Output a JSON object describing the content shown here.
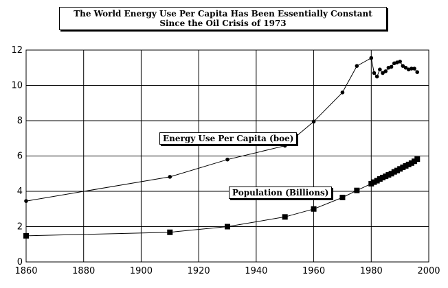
{
  "chart_data": {
    "type": "line",
    "title": "The World Energy Use Per Capita Has Been Essentially Constant Since the Oil Crisis of 1973",
    "xlabel": "",
    "ylabel": "",
    "xlim": [
      1860,
      2000
    ],
    "ylim": [
      0,
      12
    ],
    "xticks": [
      "1860",
      "1880",
      "1900",
      "1920",
      "1940",
      "1960",
      "1980",
      "2000"
    ],
    "yticks": [
      "0",
      "2",
      "4",
      "6",
      "8",
      "10",
      "12"
    ],
    "grid": true,
    "series": [
      {
        "name": "Energy Use Per Capita (boe)",
        "marker": "circle",
        "x": [
          1860,
          1910,
          1930,
          1950,
          1960,
          1970,
          1975,
          1980,
          1981,
          1982,
          1983,
          1984,
          1985,
          1986,
          1987,
          1988,
          1989,
          1990,
          1991,
          1992,
          1993,
          1994,
          1995,
          1996
        ],
        "y": [
          3.45,
          4.82,
          5.8,
          6.58,
          7.95,
          9.6,
          11.1,
          11.55,
          10.7,
          10.5,
          10.9,
          10.7,
          10.8,
          11.0,
          11.05,
          11.25,
          11.3,
          11.35,
          11.1,
          11.0,
          10.9,
          10.95,
          10.95,
          10.75
        ]
      },
      {
        "name": "Population (Billions)",
        "marker": "square",
        "x": [
          1860,
          1910,
          1930,
          1950,
          1960,
          1970,
          1975,
          1980,
          1981,
          1982,
          1983,
          1984,
          1985,
          1986,
          1987,
          1988,
          1989,
          1990,
          1991,
          1992,
          1993,
          1994,
          1995,
          1996
        ],
        "y": [
          1.48,
          1.68,
          2.0,
          2.55,
          3.0,
          3.65,
          4.05,
          4.43,
          4.52,
          4.6,
          4.7,
          4.78,
          4.85,
          4.93,
          5.0,
          5.1,
          5.18,
          5.27,
          5.36,
          5.44,
          5.52,
          5.6,
          5.7,
          5.82
        ]
      }
    ]
  }
}
